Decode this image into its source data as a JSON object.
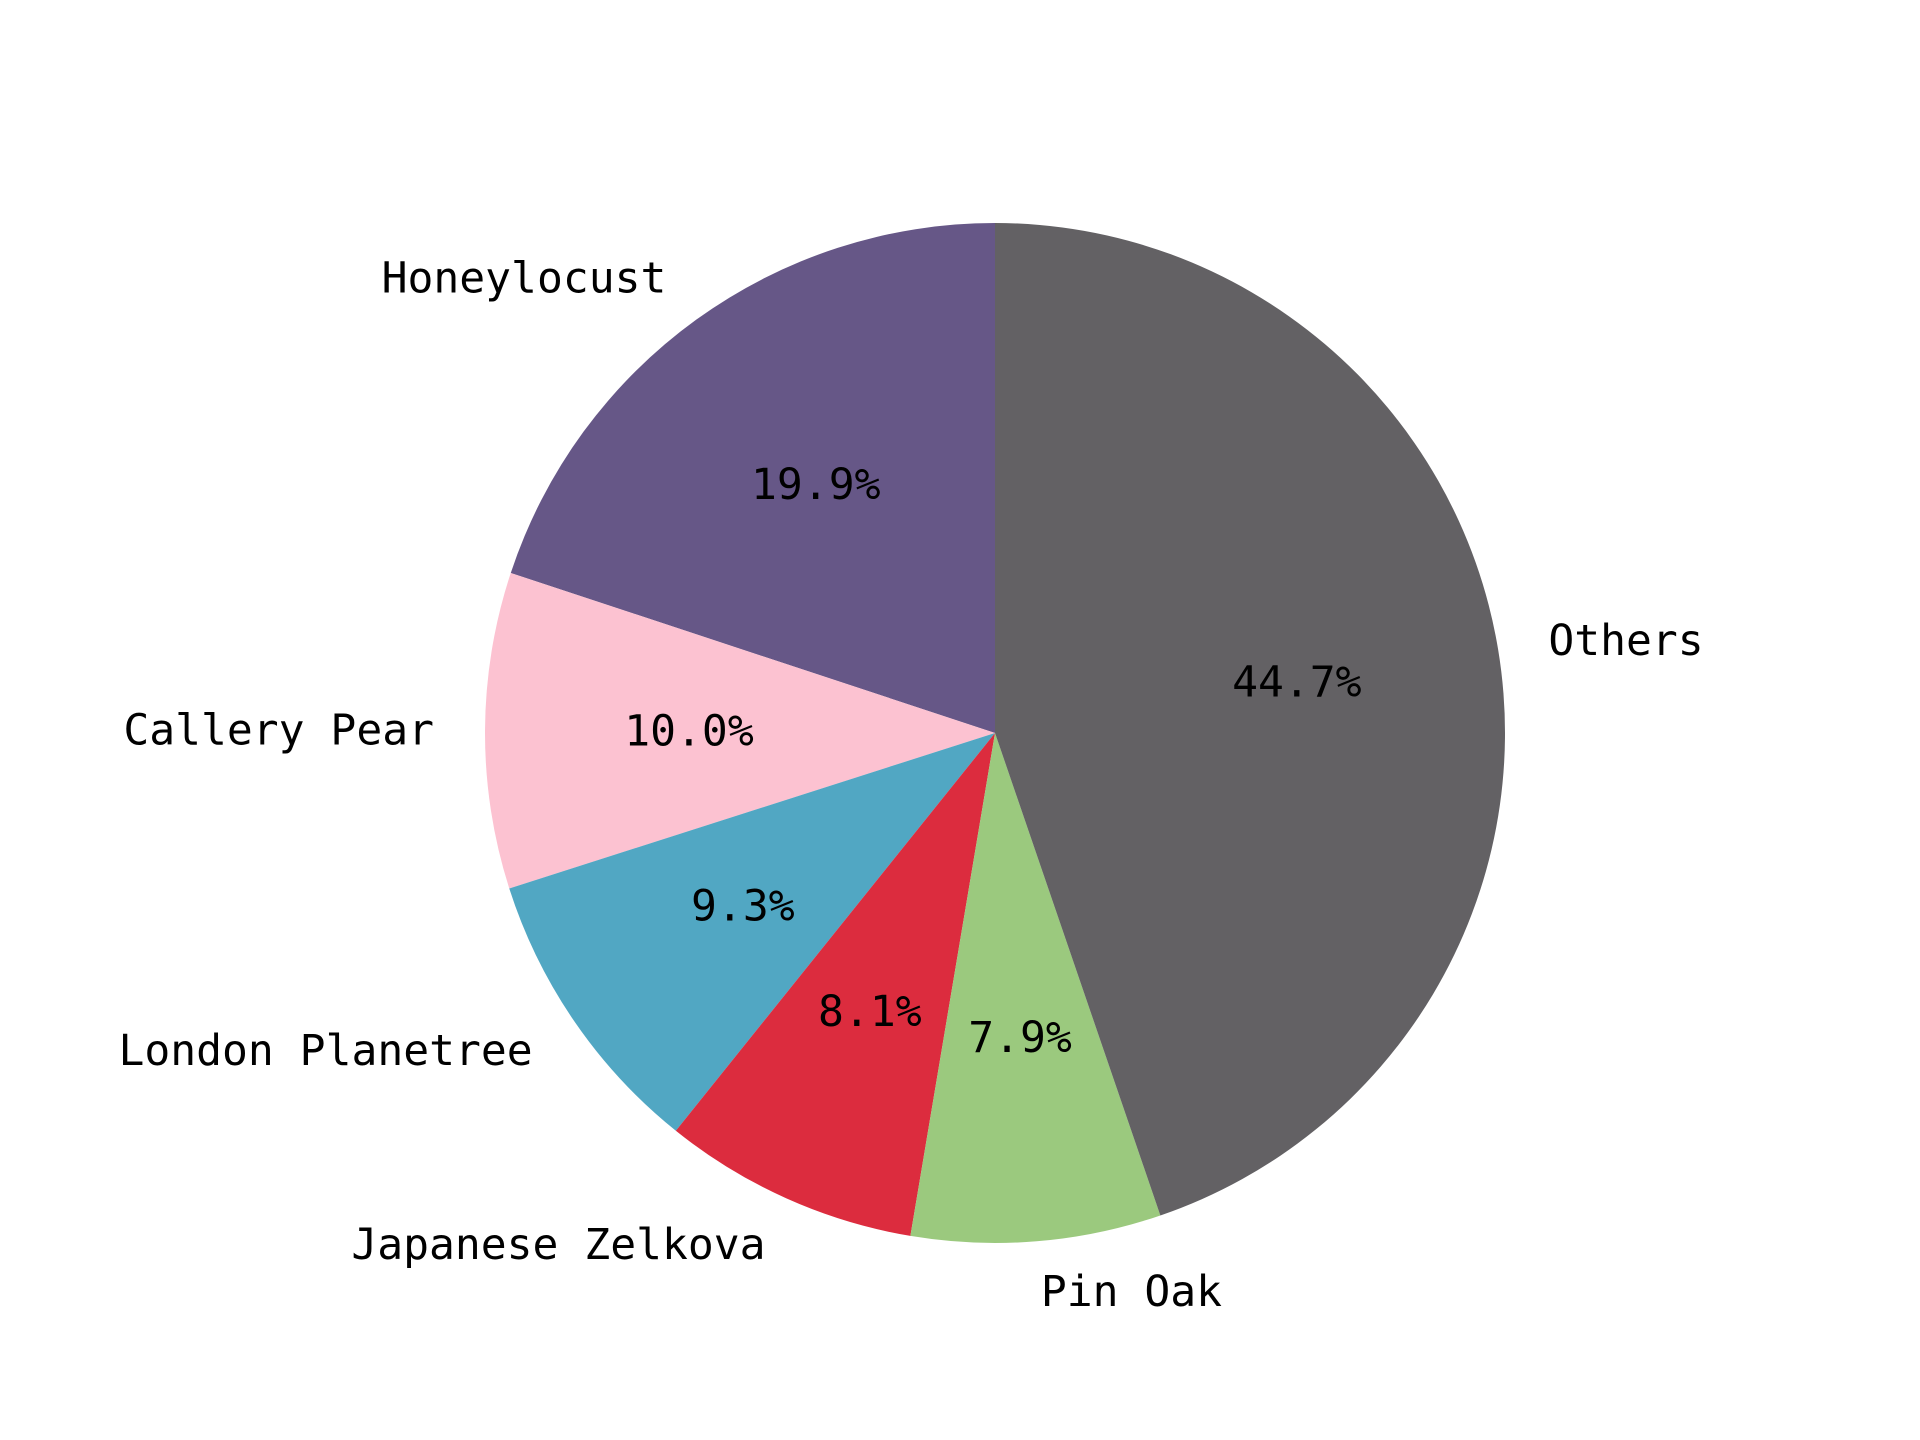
{
  "chart_data": {
    "type": "pie",
    "start_angle_deg": 90,
    "direction": "counterclockwise",
    "slices": [
      {
        "label": "Honeylocust",
        "value": 19.9,
        "pct_label": "19.9%",
        "color": "#665787"
      },
      {
        "label": "Callery Pear",
        "value": 10.0,
        "pct_label": "10.0%",
        "color": "#fcc2d1"
      },
      {
        "label": "London Planetree",
        "value": 9.3,
        "pct_label": "9.3%",
        "color": "#51a7c3"
      },
      {
        "label": "Japanese Zelkova",
        "value": 8.1,
        "pct_label": "8.1%",
        "color": "#dc2c3e"
      },
      {
        "label": "Pin Oak",
        "value": 7.9,
        "pct_label": "7.9%",
        "color": "#9bc97e"
      },
      {
        "label": "Others",
        "value": 44.7,
        "pct_label": "44.7%",
        "color": "#636164"
      }
    ]
  }
}
